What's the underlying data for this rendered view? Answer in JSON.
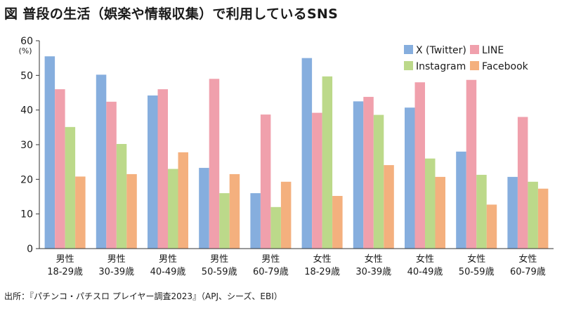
{
  "title": "図 普段の生活（娯楽や情報収集）で利用しているSNS",
  "source": "出所：『パチンコ・パチスロ プレイヤー調査2023』（APJ、シーズ、EBI）",
  "colors": {
    "X (Twitter)": "#86aede",
    "LINE": "#f0a0ac",
    "Instagram": "#bcd98a",
    "Facebook": "#f4b07e",
    "axis": "#333333"
  },
  "chart_data": {
    "type": "bar",
    "title": "普段の生活（娯楽や情報収集）で利用しているSNS",
    "ylabel": "(%)",
    "xlabel": "",
    "ylim": [
      0,
      60
    ],
    "yticks": [
      0,
      10,
      20,
      30,
      40,
      50,
      60
    ],
    "grid": false,
    "legend": "top-right",
    "categories": [
      [
        "男性",
        "18-29歳"
      ],
      [
        "男性",
        "30-39歳"
      ],
      [
        "男性",
        "40-49歳"
      ],
      [
        "男性",
        "50-59歳"
      ],
      [
        "男性",
        "60-79歳"
      ],
      [
        "女性",
        "18-29歳"
      ],
      [
        "女性",
        "30-39歳"
      ],
      [
        "女性",
        "40-49歳"
      ],
      [
        "女性",
        "50-59歳"
      ],
      [
        "女性",
        "60-79歳"
      ]
    ],
    "series": [
      {
        "name": "X (Twitter)",
        "values": [
          55.5,
          50.2,
          44.2,
          23.3,
          16.0,
          55.0,
          42.5,
          40.7,
          28.0,
          20.7
        ]
      },
      {
        "name": "LINE",
        "values": [
          46.0,
          42.4,
          46.0,
          49.0,
          38.7,
          39.2,
          43.8,
          48.0,
          48.7,
          38.0
        ]
      },
      {
        "name": "Instagram",
        "values": [
          35.1,
          30.2,
          23.0,
          16.0,
          12.0,
          49.7,
          38.6,
          26.0,
          21.3,
          19.3
        ]
      },
      {
        "name": "Facebook",
        "values": [
          20.8,
          21.5,
          27.8,
          21.5,
          19.3,
          15.2,
          24.1,
          20.7,
          12.7,
          17.3
        ]
      }
    ]
  }
}
